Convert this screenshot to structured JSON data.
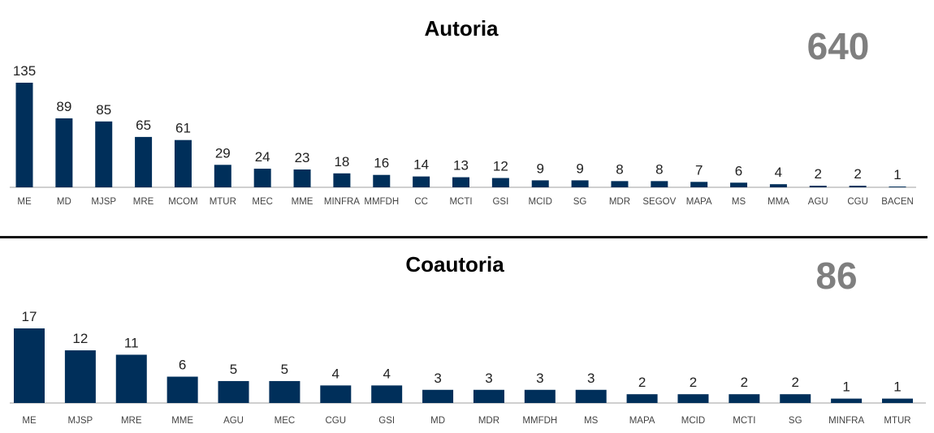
{
  "chart_data": [
    {
      "type": "bar",
      "title": "Autoria",
      "total": "640",
      "categories": [
        "ME",
        "MD",
        "MJSP",
        "MRE",
        "MCOM",
        "MTUR",
        "MEC",
        "MME",
        "MINFRA",
        "MMFDH",
        "CC",
        "MCTI",
        "GSI",
        "MCID",
        "SG",
        "MDR",
        "SEGOV",
        "MAPA",
        "MS",
        "MMA",
        "AGU",
        "CGU",
        "BACEN"
      ],
      "values": [
        135,
        89,
        85,
        65,
        61,
        29,
        24,
        23,
        18,
        16,
        14,
        13,
        12,
        9,
        9,
        8,
        8,
        7,
        6,
        4,
        2,
        2,
        1
      ],
      "xlabel": "",
      "ylabel": "",
      "grid": false,
      "bar_color": "#002f5a"
    },
    {
      "type": "bar",
      "title": "Coautoria",
      "total": "86",
      "categories": [
        "ME",
        "MJSP",
        "MRE",
        "MME",
        "AGU",
        "MEC",
        "CGU",
        "GSI",
        "MD",
        "MDR",
        "MMFDH",
        "MS",
        "MAPA",
        "MCID",
        "MCTI",
        "SG",
        "MINFRA",
        "MTUR"
      ],
      "values": [
        17,
        12,
        11,
        6,
        5,
        5,
        4,
        4,
        3,
        3,
        3,
        3,
        2,
        2,
        2,
        2,
        1,
        1
      ],
      "xlabel": "",
      "ylabel": "",
      "grid": false,
      "bar_color": "#002f5a"
    }
  ]
}
